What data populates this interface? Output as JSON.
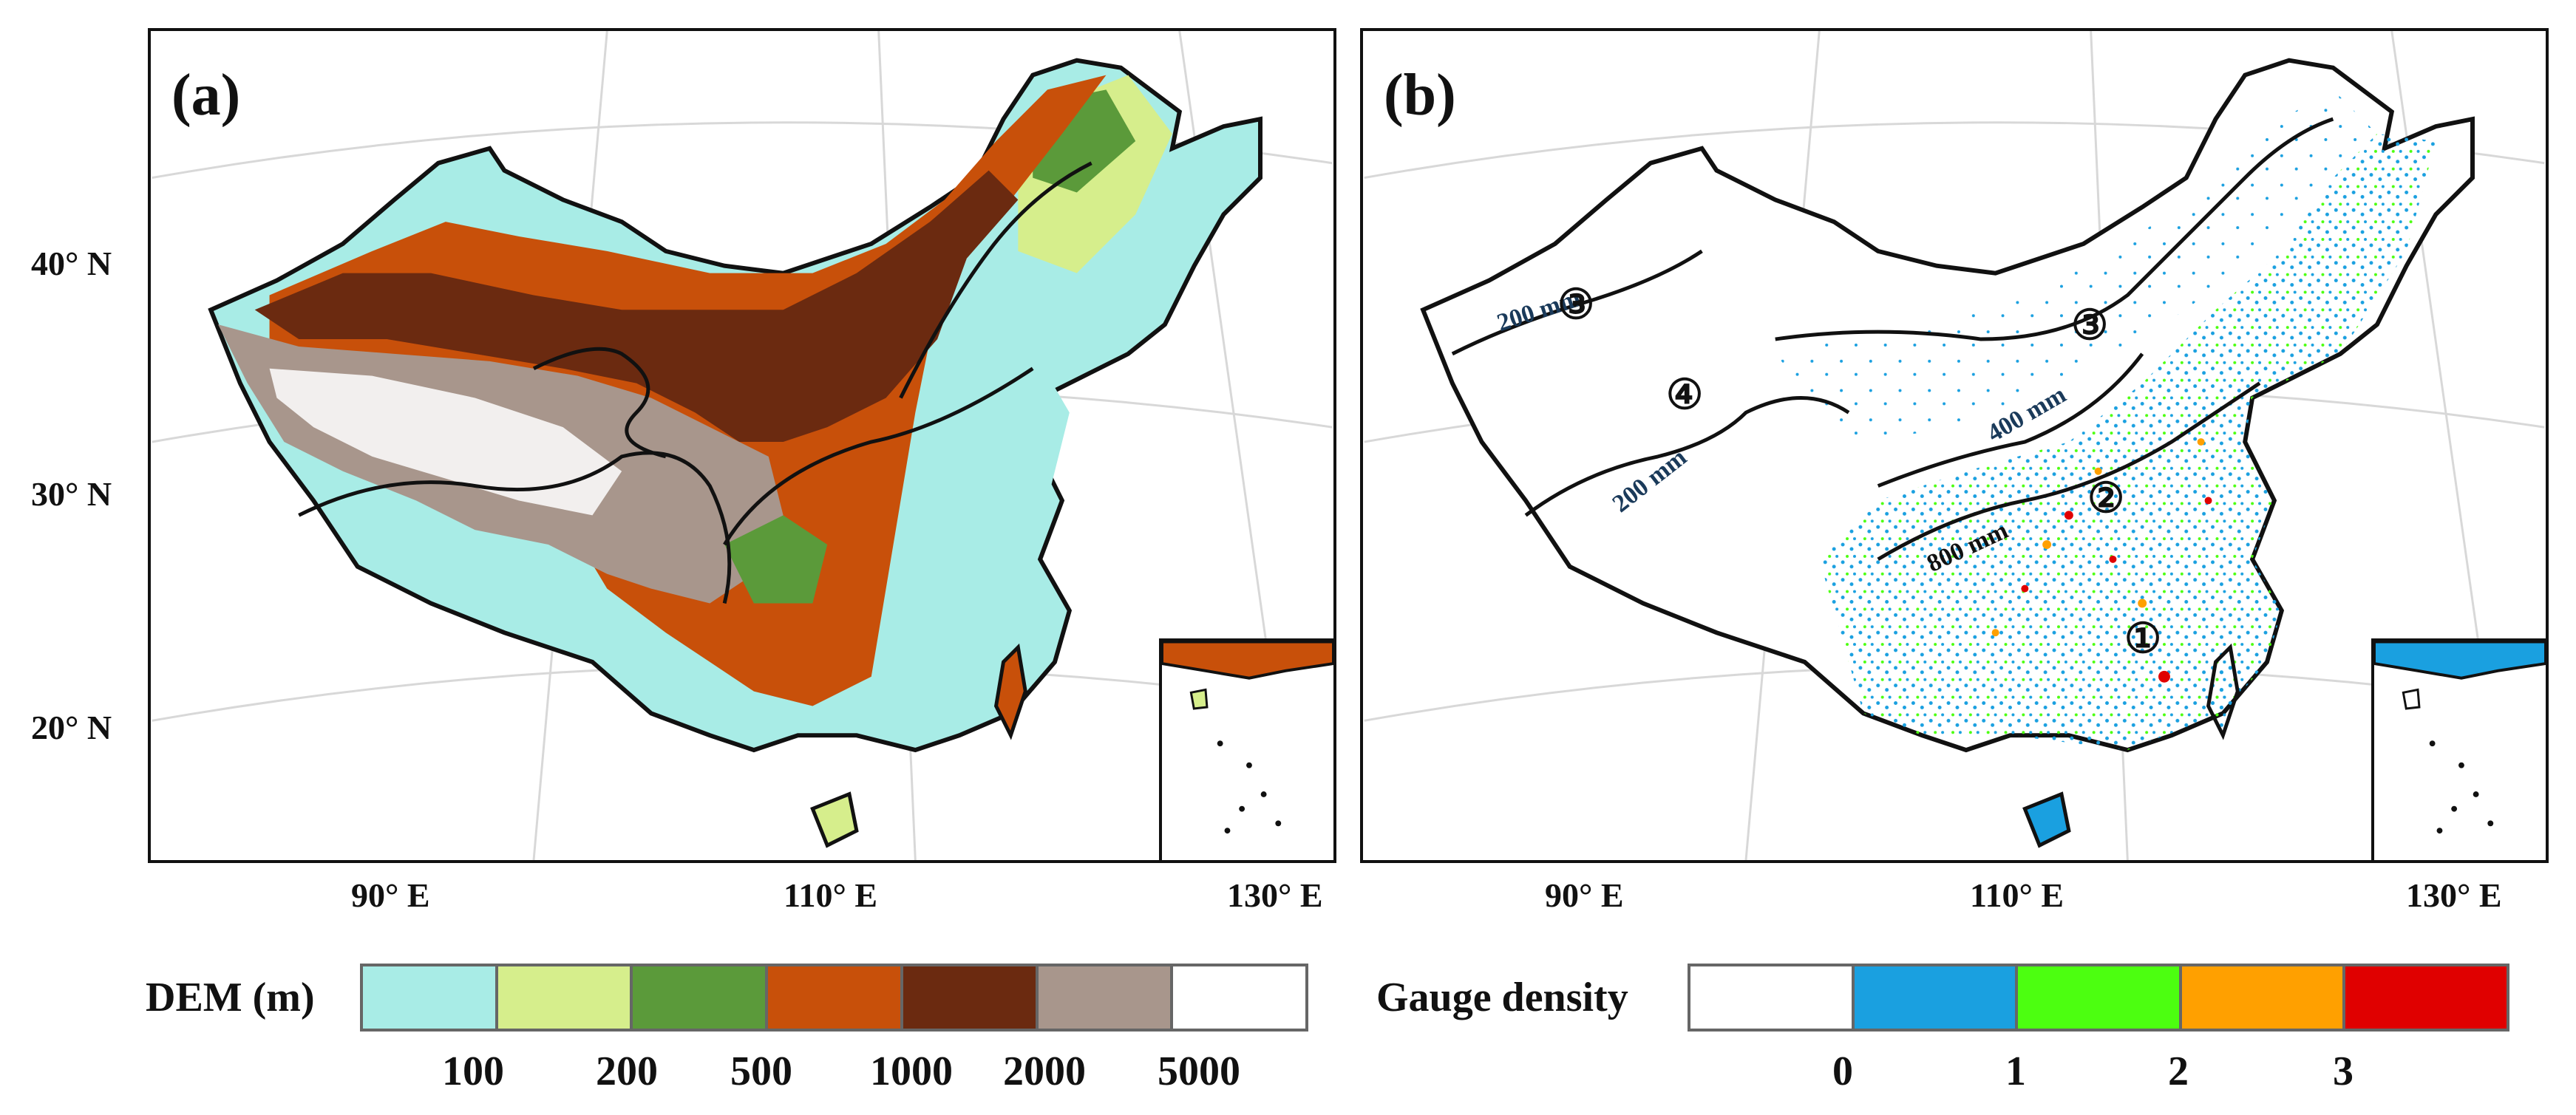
{
  "panels": {
    "a": {
      "label": "(a)"
    },
    "b": {
      "label": "(b)"
    }
  },
  "axes": {
    "lat_labels": [
      "40° N",
      "30° N",
      "20° N"
    ],
    "lon_labels": [
      "90° E",
      "110° E",
      "130° E"
    ]
  },
  "map_b": {
    "isohyets": [
      "200 mm",
      "400 mm",
      "200 mm",
      "800 mm"
    ],
    "zones": [
      "①",
      "②",
      "③",
      "③",
      "④"
    ]
  },
  "dem_legend": {
    "title": "DEM (m)",
    "colors": [
      "#a8ece6",
      "#d6ee8c",
      "#5b9a3a",
      "#c8500a",
      "#6b2a10",
      "#a8968c",
      "#ffffff"
    ],
    "ticks": [
      "100",
      "200",
      "500",
      "1000",
      "2000",
      "5000"
    ]
  },
  "gauge_legend": {
    "title": "Gauge density",
    "colors": [
      "#ffffff",
      "#1aa0e0",
      "#4cff10",
      "#ffa000",
      "#e00000"
    ],
    "ticks": [
      "0",
      "1",
      "2",
      "3"
    ]
  }
}
